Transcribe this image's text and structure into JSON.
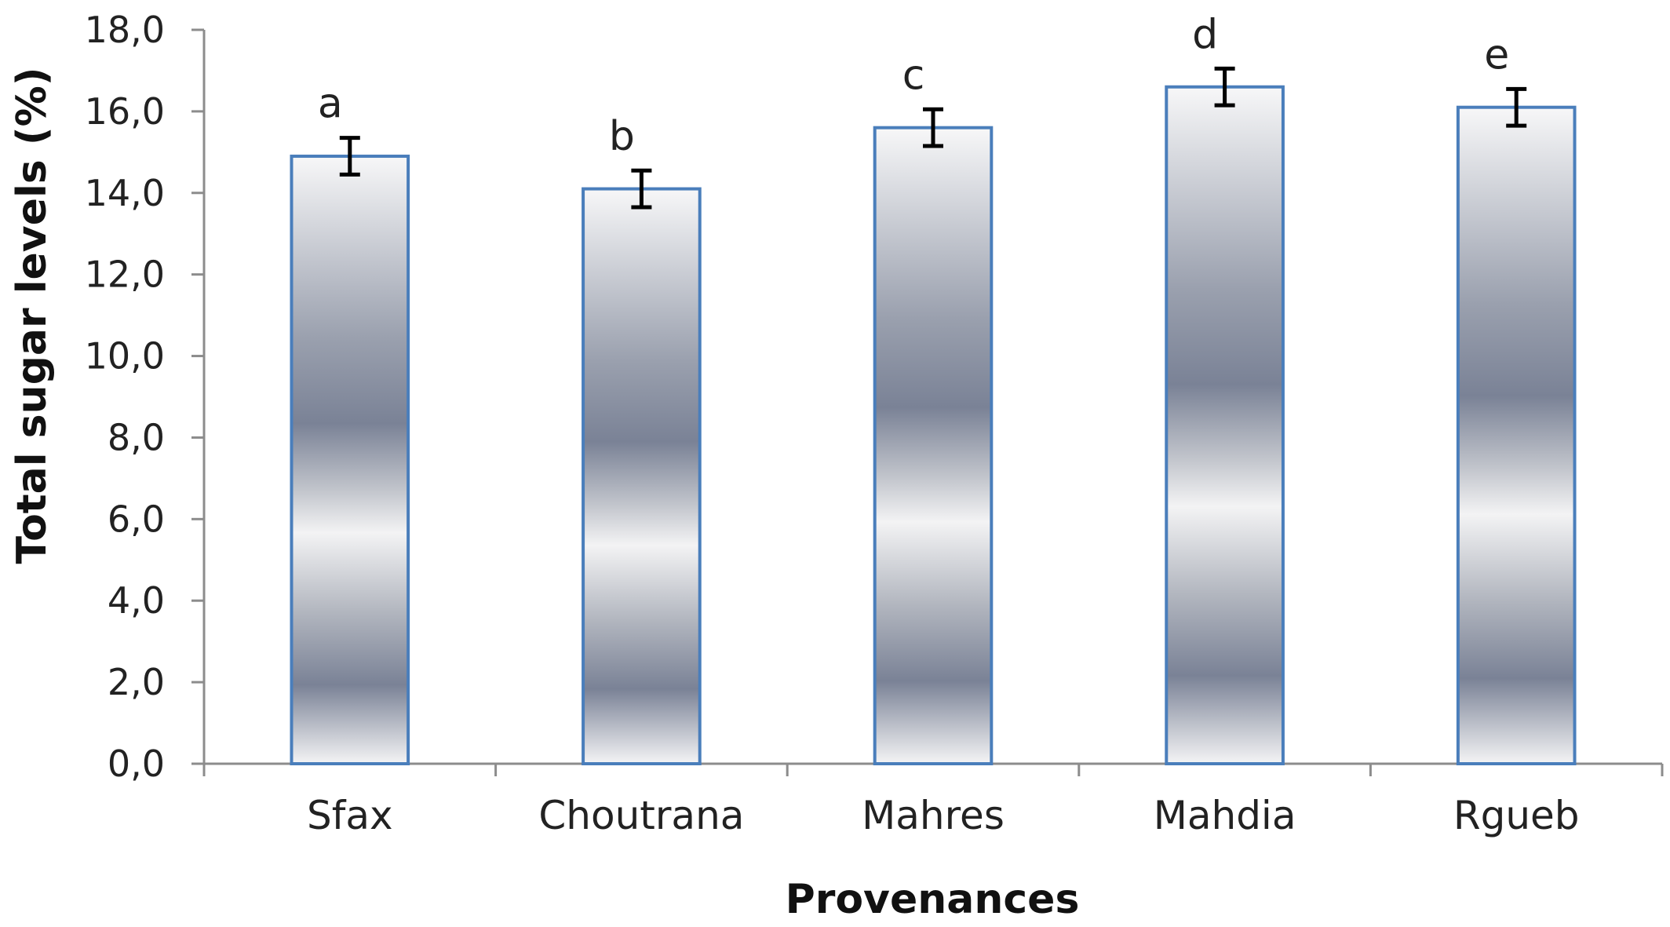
{
  "chart_data": {
    "type": "bar",
    "categories": [
      "Sfax",
      "Choutrana",
      "Mahres",
      "Mahdia",
      "Rgueb"
    ],
    "values": [
      14.9,
      14.1,
      15.6,
      16.6,
      16.1
    ],
    "errors": [
      0.45,
      0.45,
      0.45,
      0.45,
      0.45
    ],
    "significance_letters": [
      "a",
      "b",
      "c",
      "d",
      "e"
    ],
    "xlabel": "Provenances",
    "ylabel": "Total sugar levels (%)",
    "ylim": [
      0,
      18
    ],
    "yticks": [
      "0,0",
      "2,0",
      "4,0",
      "6,0",
      "8,0",
      "10,0",
      "12,0",
      "14,0",
      "16,0",
      "18,0"
    ],
    "grid": false,
    "colors": {
      "bar_border": "#4a7ebb",
      "bar_dark": "#7a8296",
      "bar_light": "#f7f7f8",
      "error_bar": "#000000",
      "axis": "#8c8c8c"
    }
  }
}
